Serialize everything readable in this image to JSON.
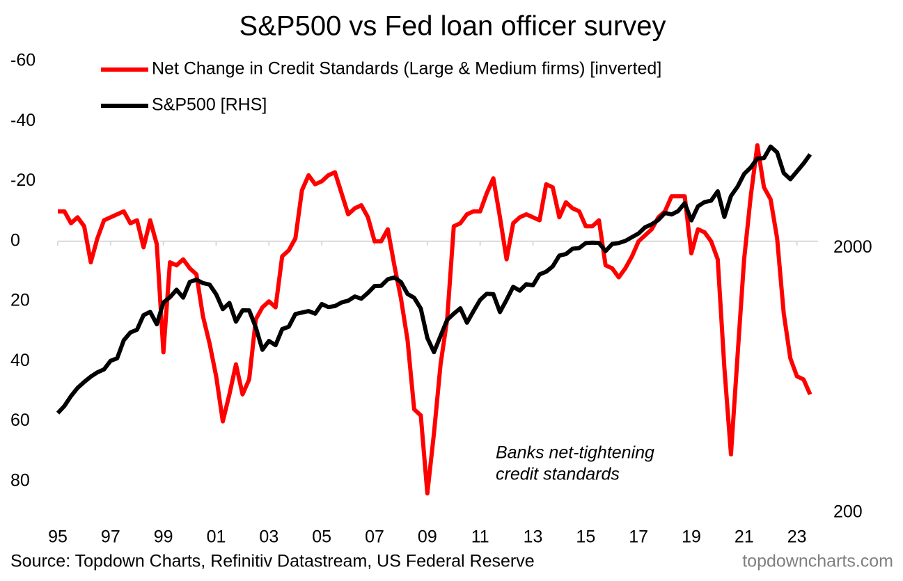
{
  "chart_data": {
    "type": "line",
    "title": "S&P500 vs Fed loan officer survey",
    "annotation": [
      "Banks net-tightening",
      "credit standards"
    ],
    "source": "Source: Topdown Charts, Refinitiv Datastream, US Federal Reserve",
    "watermark": "topdowncharts.com",
    "ylim": [
      -60,
      90
    ],
    "y_inverted": true,
    "yticks": [
      -60,
      -40,
      -20,
      0,
      20,
      40,
      60,
      80
    ],
    "y2lim": [
      200,
      10000
    ],
    "y2_log": true,
    "y2ticks": [
      200,
      2000
    ],
    "xlim": [
      1995,
      2023.8
    ],
    "xticks": [
      {
        "value": 1995,
        "label": "95"
      },
      {
        "value": 1997,
        "label": "97"
      },
      {
        "value": 1999,
        "label": "99"
      },
      {
        "value": 2001,
        "label": "01"
      },
      {
        "value": 2003,
        "label": "03"
      },
      {
        "value": 2005,
        "label": "05"
      },
      {
        "value": 2007,
        "label": "07"
      },
      {
        "value": 2009,
        "label": "09"
      },
      {
        "value": 2011,
        "label": "11"
      },
      {
        "value": 2013,
        "label": "13"
      },
      {
        "value": 2015,
        "label": "15"
      },
      {
        "value": 2017,
        "label": "17"
      },
      {
        "value": 2019,
        "label": "19"
      },
      {
        "value": 2021,
        "label": "21"
      },
      {
        "value": 2023,
        "label": "23"
      }
    ],
    "x": [
      1995,
      1995.25,
      1995.5,
      1995.75,
      1996,
      1996.25,
      1996.5,
      1996.75,
      1997,
      1997.25,
      1997.5,
      1997.75,
      1998,
      1998.25,
      1998.5,
      1998.75,
      1999,
      1999.25,
      1999.5,
      1999.75,
      2000,
      2000.25,
      2000.5,
      2000.75,
      2001,
      2001.25,
      2001.5,
      2001.75,
      2002,
      2002.25,
      2002.5,
      2002.75,
      2003,
      2003.25,
      2003.5,
      2003.75,
      2004,
      2004.25,
      2004.5,
      2004.75,
      2005,
      2005.25,
      2005.5,
      2005.75,
      2006,
      2006.25,
      2006.5,
      2006.75,
      2007,
      2007.25,
      2007.5,
      2007.75,
      2008,
      2008.25,
      2008.5,
      2008.75,
      2009,
      2009.25,
      2009.5,
      2009.75,
      2010,
      2010.25,
      2010.5,
      2010.75,
      2011,
      2011.25,
      2011.5,
      2011.75,
      2012,
      2012.25,
      2012.5,
      2012.75,
      2013,
      2013.25,
      2013.5,
      2013.75,
      2014,
      2014.25,
      2014.5,
      2014.75,
      2015,
      2015.25,
      2015.5,
      2015.75,
      2016,
      2016.25,
      2016.5,
      2016.75,
      2017,
      2017.25,
      2017.5,
      2017.75,
      2018,
      2018.25,
      2018.5,
      2018.75,
      2019,
      2019.25,
      2019.5,
      2019.75,
      2020,
      2020.25,
      2020.5,
      2020.75,
      2021,
      2021.25,
      2021.5,
      2021.75,
      2022,
      2022.25,
      2022.5,
      2022.75,
      2023,
      2023.25,
      2023.5
    ],
    "series": [
      {
        "name": "Net Change in Credit Standards (Large & Medium firms) [inverted]",
        "color": "#ff0000",
        "values": [
          -10,
          -10,
          -6,
          -8,
          -5,
          7,
          -1,
          -7,
          -8,
          -9,
          -10,
          -6,
          -7,
          2,
          -7,
          1,
          37,
          7,
          8,
          6,
          9,
          11,
          25,
          34,
          45,
          60,
          51,
          41,
          51,
          46,
          26,
          22,
          20,
          22,
          5,
          3,
          -1,
          -17,
          -22,
          -19,
          -20,
          -22,
          -23,
          -16,
          -9,
          -11,
          -12,
          -8,
          0,
          0,
          -4,
          8,
          19,
          33,
          56,
          58,
          84,
          64,
          41,
          26,
          -5,
          -6,
          -9,
          -10,
          -10,
          -16,
          -21,
          -8,
          6,
          -6,
          -8,
          -9,
          -8,
          -7,
          -19,
          -18,
          -8,
          -13,
          -11,
          -10,
          -5,
          -5,
          -7,
          8,
          9,
          12,
          9,
          5,
          0,
          -2,
          -4,
          -8,
          -10,
          -15,
          -15,
          -15,
          4,
          -4,
          -3,
          0,
          6,
          42,
          71,
          38,
          6,
          -15,
          -32,
          -18,
          -14,
          -1,
          24,
          39,
          45,
          46,
          51
        ]
      },
      {
        "name": "S&P500 [RHS]",
        "color": "#000000",
        "axis": "y2",
        "values": [
          470,
          500,
          545,
          585,
          616,
          645,
          670,
          687,
          740,
          757,
          885,
          947,
          970,
          1101,
          1133,
          1017,
          1229,
          1286,
          1373,
          1282,
          1469,
          1498,
          1455,
          1436,
          1320,
          1160,
          1224,
          1041,
          1148,
          1147,
          990,
          815,
          880,
          848,
          975,
          996,
          1112,
          1126,
          1141,
          1115,
          1212,
          1181,
          1191,
          1229,
          1248,
          1295,
          1270,
          1336,
          1418,
          1421,
          1503,
          1527,
          1468,
          1323,
          1280,
          1166,
          903,
          798,
          919,
          1057,
          1115,
          1169,
          1031,
          1141,
          1258,
          1326,
          1321,
          1131,
          1258,
          1408,
          1362,
          1441,
          1426,
          1569,
          1606,
          1682,
          1848,
          1872,
          1960,
          1972,
          2059,
          2068,
          2063,
          1920,
          2044,
          2060,
          2099,
          2168,
          2239,
          2363,
          2423,
          2519,
          2674,
          2641,
          2718,
          2914,
          2507,
          2834,
          2942,
          2977,
          3231,
          2585,
          3100,
          3363,
          3756,
          3973,
          4298,
          4308,
          4766,
          4530,
          3785,
          3586,
          3840,
          4109,
          4450
        ]
      }
    ]
  }
}
